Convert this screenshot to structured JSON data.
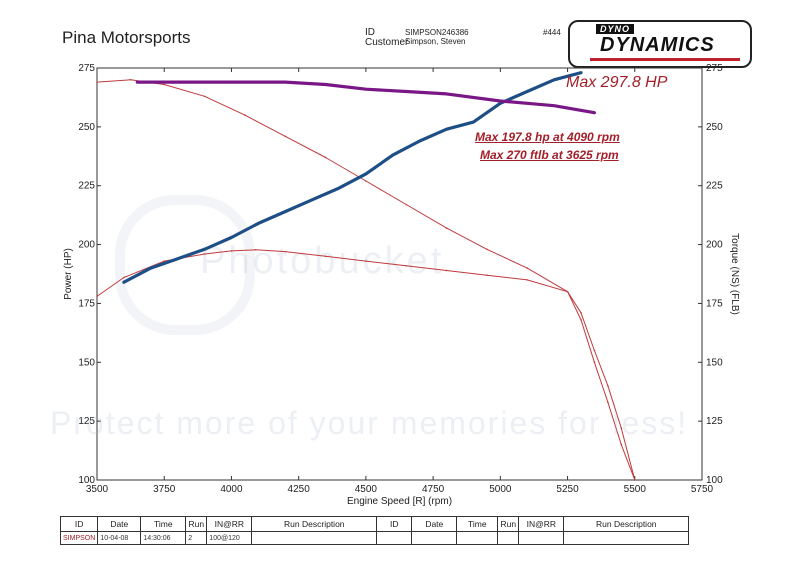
{
  "header": {
    "title": "Pina Motorsports",
    "id_label": "ID",
    "id_value": "SIMPSON246386",
    "customer_label": "Customer",
    "customer_value": "Simpson, Steven",
    "sheet_no": "#444",
    "logo_top": "DYNO",
    "logo_main": "DYNAMICS"
  },
  "annotations": {
    "max_hp": "Max 297.8 HP",
    "hp_line": "Max  197.8 hp at 4090 rpm",
    "tq_line": "Max  270 ftlb at 3625 rpm"
  },
  "watermark": {
    "line1": "Photobucket",
    "line2": "Protect more of your memories for less!"
  },
  "table": {
    "headers": [
      "ID",
      "Date",
      "Time",
      "Run",
      "IN@RR",
      "Run Description",
      "ID",
      "Date",
      "Time",
      "Run",
      "IN@RR",
      "Run Description"
    ],
    "row": [
      "SIMPSON",
      "10-04-08",
      "14:30:06",
      "2",
      "100@120",
      "",
      "",
      "",
      "",
      "",
      "",
      ""
    ]
  },
  "colors": {
    "original_curves": "#c0393b",
    "added_hp": "#1d4f86",
    "added_torque": "#7a1786",
    "annotation": "#a3202a"
  },
  "chart_data": {
    "type": "line",
    "xlabel": "Engine Speed [R] (rpm)",
    "ylabel": "Power (HP)",
    "y2label": "Torque (NS) (FLB)",
    "xlim": [
      3500,
      5750
    ],
    "ylim": [
      100,
      275
    ],
    "y2lim": [
      100,
      275
    ],
    "xticks": [
      3500,
      3750,
      4000,
      4250,
      4500,
      4750,
      5000,
      5250,
      5500,
      5750
    ],
    "yticks": [
      100,
      125,
      150,
      175,
      200,
      225,
      250,
      275
    ],
    "y2ticks": [
      100,
      125,
      150,
      175,
      200,
      225,
      250,
      275
    ],
    "grid": false,
    "series": [
      {
        "axis": "left",
        "color": "#c0393b",
        "x": [
          3500,
          3600,
          3750,
          3900,
          4000,
          4090,
          4200,
          4350,
          4500,
          4650,
          4800,
          4950,
          5100,
          5250,
          5300,
          5350,
          5400,
          5450,
          5500
        ],
        "values": [
          178,
          186,
          193,
          196,
          197.3,
          197.8,
          197,
          195,
          193,
          191,
          189,
          187,
          185,
          180,
          171,
          155,
          140,
          122,
          100
        ]
      },
      {
        "axis": "left",
        "color": "#c0393b",
        "x": [
          3500,
          3625,
          3750,
          3900,
          4050,
          4200,
          4350,
          4500,
          4650,
          4800,
          4950,
          5100,
          5250,
          5300,
          5350,
          5400,
          5450,
          5500
        ],
        "values": [
          269,
          270,
          268,
          263,
          255,
          246,
          237,
          227,
          217,
          207,
          198,
          190,
          180,
          168,
          150,
          133,
          115,
          100
        ]
      },
      {
        "axis": "left",
        "color": "#1d4f86",
        "x": [
          3600,
          3700,
          3800,
          3900,
          4000,
          4100,
          4200,
          4300,
          4400,
          4500,
          4600,
          4700,
          4800,
          4900,
          5000,
          5100,
          5200,
          5300
        ],
        "values": [
          184,
          190,
          194,
          198,
          203,
          209,
          214,
          219,
          224,
          230,
          238,
          244,
          249,
          252,
          260,
          265,
          270,
          273
        ]
      },
      {
        "axis": "left",
        "color": "#7a1786",
        "x": [
          3650,
          3800,
          4000,
          4200,
          4350,
          4500,
          4650,
          4800,
          5000,
          5100,
          5200,
          5350
        ],
        "values": [
          269,
          269,
          269,
          269,
          268,
          266,
          265,
          264,
          261,
          260,
          259,
          256
        ]
      }
    ]
  }
}
